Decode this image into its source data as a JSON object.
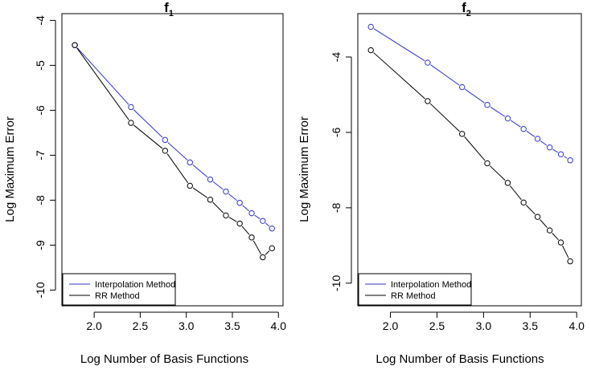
{
  "chart_data": [
    {
      "type": "line",
      "title": "f",
      "title_subscript": "1",
      "xlabel": "Log Number of Basis Functions",
      "ylabel": "Log Maximum Error",
      "xlim": [
        1.65,
        4.05
      ],
      "ylim": [
        -10.35,
        -3.85
      ],
      "xticks": [
        "2.0",
        "2.5",
        "3.0",
        "3.5",
        "4.0"
      ],
      "yticks": [
        "-4",
        "-5",
        "-6",
        "-7",
        "-8",
        "-9",
        "-10"
      ],
      "legend": {
        "position": "bottom-left",
        "entries": [
          "Interpolation Method",
          "RR Method"
        ]
      },
      "series": [
        {
          "name": "Interpolation Method",
          "color": "#3333cc",
          "points": [
            [
              1.79,
              -4.55
            ],
            [
              2.4,
              -5.93
            ],
            [
              2.77,
              -6.66
            ],
            [
              3.04,
              -7.16
            ],
            [
              3.26,
              -7.54
            ],
            [
              3.43,
              -7.81
            ],
            [
              3.58,
              -8.06
            ],
            [
              3.71,
              -8.29
            ],
            [
              3.83,
              -8.46
            ],
            [
              3.93,
              -8.63
            ]
          ]
        },
        {
          "name": "RR Method",
          "color": "#000000",
          "points": [
            [
              1.79,
              -4.55
            ],
            [
              2.4,
              -6.28
            ],
            [
              2.77,
              -6.9
            ],
            [
              3.04,
              -7.68
            ],
            [
              3.26,
              -7.99
            ],
            [
              3.43,
              -8.34
            ],
            [
              3.58,
              -8.52
            ],
            [
              3.71,
              -8.83
            ],
            [
              3.83,
              -9.27
            ],
            [
              3.93,
              -9.07
            ]
          ]
        }
      ]
    },
    {
      "type": "line",
      "title": "f",
      "title_subscript": "2",
      "xlabel": "Log Number of Basis Functions",
      "ylabel": "Log Maximum Error",
      "xlim": [
        1.65,
        4.05
      ],
      "ylim": [
        -10.6,
        -2.85
      ],
      "xticks": [
        "2.0",
        "2.5",
        "3.0",
        "3.5",
        "4.0"
      ],
      "yticks": [
        "-4",
        "-6",
        "-8",
        "-10"
      ],
      "legend": {
        "position": "bottom-left",
        "entries": [
          "Interpolation Method",
          "RR Method"
        ]
      },
      "series": [
        {
          "name": "Interpolation Method",
          "color": "#3333cc",
          "points": [
            [
              1.79,
              -3.2
            ],
            [
              2.4,
              -4.15
            ],
            [
              2.77,
              -4.8
            ],
            [
              3.04,
              -5.27
            ],
            [
              3.26,
              -5.63
            ],
            [
              3.43,
              -5.91
            ],
            [
              3.58,
              -6.17
            ],
            [
              3.71,
              -6.4
            ],
            [
              3.83,
              -6.58
            ],
            [
              3.93,
              -6.74
            ]
          ]
        },
        {
          "name": "RR Method",
          "color": "#000000",
          "points": [
            [
              1.79,
              -3.82
            ],
            [
              2.4,
              -5.17
            ],
            [
              2.77,
              -6.04
            ],
            [
              3.04,
              -6.82
            ],
            [
              3.26,
              -7.34
            ],
            [
              3.43,
              -7.86
            ],
            [
              3.58,
              -8.24
            ],
            [
              3.71,
              -8.6
            ],
            [
              3.83,
              -8.92
            ],
            [
              3.93,
              -9.42
            ]
          ]
        }
      ]
    }
  ]
}
